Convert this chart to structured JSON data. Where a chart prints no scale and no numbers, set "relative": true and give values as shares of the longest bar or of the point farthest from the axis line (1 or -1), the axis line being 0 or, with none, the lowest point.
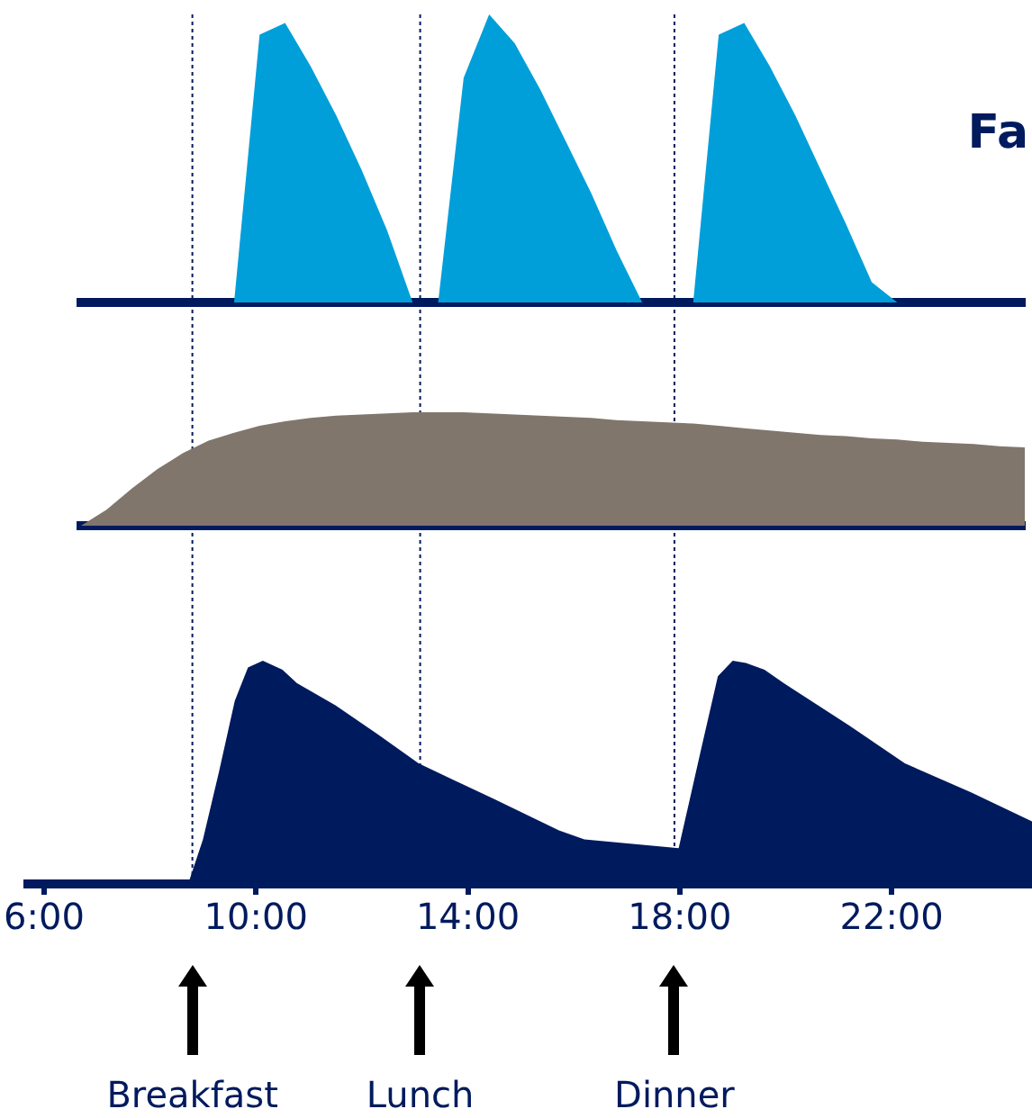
{
  "chart_data": [
    {
      "type": "area",
      "relative": true,
      "annotations": [
        "Fa"
      ],
      "categories": [
        null,
        null,
        null,
        null,
        null,
        null,
        null,
        null,
        null,
        null,
        null,
        null,
        null,
        null,
        null,
        null,
        null,
        null,
        null,
        null,
        null,
        null,
        null,
        null,
        null,
        null,
        null,
        null,
        null,
        null,
        null,
        null,
        null,
        null,
        null,
        null,
        null,
        null
      ],
      "series": [
        {
          "color": "#009fda",
          "values": [
            0,
            0,
            0,
            0,
            0,
            0,
            0,
            0.93,
            0.97,
            0.82,
            0.65,
            0.46,
            0.25,
            0,
            0,
            0.78,
            1,
            0.9,
            0.74,
            0.56,
            0.38,
            0.18,
            0,
            0,
            0,
            0.93,
            0.97,
            0.82,
            0.65,
            0.46,
            0.27,
            0.07,
            0,
            0,
            0,
            0,
            0,
            0
          ]
        }
      ]
    },
    {
      "type": "area",
      "relative": true,
      "categories": [
        null,
        null,
        null,
        null,
        null,
        null,
        null,
        null,
        null,
        null,
        null,
        null,
        null,
        null,
        null,
        null,
        null,
        null,
        null,
        null,
        null,
        null,
        null,
        null,
        null,
        null,
        null,
        null,
        null,
        null,
        null,
        null,
        null,
        null,
        null,
        null,
        null,
        null
      ],
      "series": [
        {
          "color": "#80766c",
          "values": [
            0,
            0.14,
            0.33,
            0.5,
            0.64,
            0.75,
            0.82,
            0.88,
            0.92,
            0.95,
            0.97,
            0.98,
            0.99,
            1,
            1,
            1,
            0.99,
            0.98,
            0.97,
            0.96,
            0.95,
            0.93,
            0.92,
            0.91,
            0.9,
            0.88,
            0.86,
            0.84,
            0.82,
            0.8,
            0.79,
            0.77,
            0.76,
            0.74,
            0.73,
            0.72,
            0.7,
            0.69
          ]
        }
      ]
    },
    {
      "type": "area",
      "relative": true,
      "xlim": [
        5.7,
        24.65
      ],
      "xticks": [
        {
          "value": 6,
          "label": "6:00"
        },
        {
          "value": 10,
          "label": "10:00"
        },
        {
          "value": 14,
          "label": "14:00"
        },
        {
          "value": 18,
          "label": "18:00"
        },
        {
          "value": 22,
          "label": "22:00"
        }
      ],
      "series": [
        {
          "color": "#001a5e",
          "x": [
            5.7,
            8.72,
            9.0,
            9.3,
            9.6,
            9.85,
            10.13,
            10.5,
            10.77,
            11.5,
            12.3,
            13.07,
            14.5,
            15.72,
            16.2,
            17.98,
            18.4,
            18.72,
            19.0,
            19.25,
            19.6,
            19.96,
            21.2,
            22.25,
            23.5,
            24.65
          ],
          "values": [
            0,
            0,
            0.2,
            0.5,
            0.82,
            0.97,
            1,
            0.96,
            0.9,
            0.8,
            0.67,
            0.54,
            0.38,
            0.24,
            0.2,
            0.16,
            0.6,
            0.93,
            1,
            0.99,
            0.96,
            0.9,
            0.71,
            0.54,
            0.41,
            0.28
          ]
        }
      ],
      "ref_lines": [
        {
          "axis": "x",
          "value": 8.8,
          "line_style": "dotted",
          "color": "#001a5e",
          "label": "Breakfast"
        },
        {
          "axis": "x",
          "value": 13.1,
          "line_style": "dotted",
          "color": "#001a5e",
          "label": "Lunch"
        },
        {
          "axis": "x",
          "value": 17.9,
          "line_style": "dotted",
          "color": "#001a5e",
          "label": "Dinner"
        }
      ]
    }
  ]
}
